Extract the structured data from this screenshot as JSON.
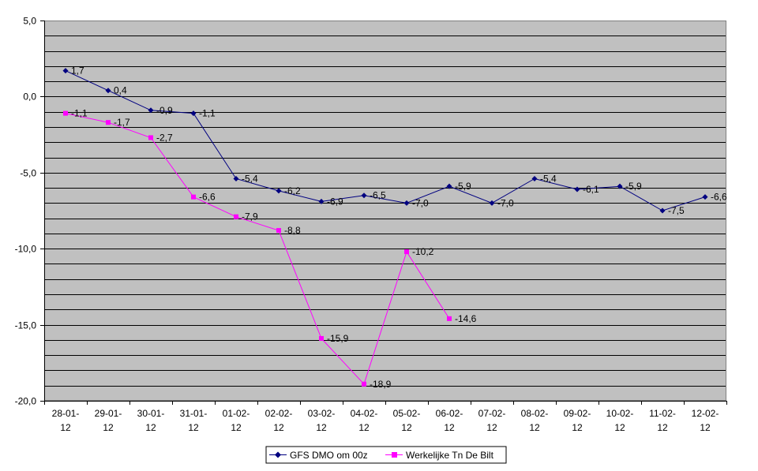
{
  "chart_data": {
    "type": "line",
    "categories": [
      [
        "28-01-",
        "12"
      ],
      [
        "29-01-",
        "12"
      ],
      [
        "30-01-",
        "12"
      ],
      [
        "31-01-",
        "12"
      ],
      [
        "01-02-",
        "12"
      ],
      [
        "02-02-",
        "12"
      ],
      [
        "03-02-",
        "12"
      ],
      [
        "04-02-",
        "12"
      ],
      [
        "05-02-",
        "12"
      ],
      [
        "06-02-",
        "12"
      ],
      [
        "07-02-",
        "12"
      ],
      [
        "08-02-",
        "12"
      ],
      [
        "09-02-",
        "12"
      ],
      [
        "10-02-",
        "12"
      ],
      [
        "11-02-",
        "12"
      ],
      [
        "12-02-",
        "12"
      ]
    ],
    "ylim": [
      -20,
      5
    ],
    "yticks": [
      5,
      0,
      -5,
      -10,
      -15,
      -20
    ],
    "ytick_labels": [
      "5,0",
      "0,0",
      "-5,0",
      "-10,0",
      "-15,0",
      "-20,0"
    ],
    "minor_gridline_step": 1,
    "plot_background": "#c0c0c0",
    "series": [
      {
        "name": "GFS DMO om 00z",
        "color": "#000080",
        "marker": "diamond",
        "values": [
          1.7,
          0.4,
          -0.9,
          -1.1,
          -5.4,
          -6.2,
          -6.9,
          -6.5,
          -7.0,
          -5.9,
          -7.0,
          -5.4,
          -6.1,
          -5.9,
          -7.5,
          -6.6
        ],
        "labels": [
          "1,7",
          "0,4",
          "-0,9",
          "-1,1",
          "-5,4",
          "-6,2",
          "-6,9",
          "-6,5",
          "-7,0",
          "-5,9",
          "-7,0",
          "-5,4",
          "-6,1",
          "-5,9",
          "-7,5",
          "-6,6"
        ]
      },
      {
        "name": "Werkelijke Tn De Bilt",
        "color": "#ff00ff",
        "marker": "square",
        "values": [
          -1.1,
          -1.7,
          -2.7,
          -6.6,
          -7.9,
          -8.8,
          -15.9,
          -18.9,
          -10.2,
          -14.6,
          null,
          null,
          null,
          null,
          null,
          null
        ],
        "labels": [
          "-1,1",
          "-1,7",
          "-2,7",
          "-6,6",
          "-7,9",
          "-8,8",
          "-15,9",
          "-18,9",
          "-10,2",
          "-14,6",
          null,
          null,
          null,
          null,
          null,
          null
        ]
      }
    ]
  }
}
